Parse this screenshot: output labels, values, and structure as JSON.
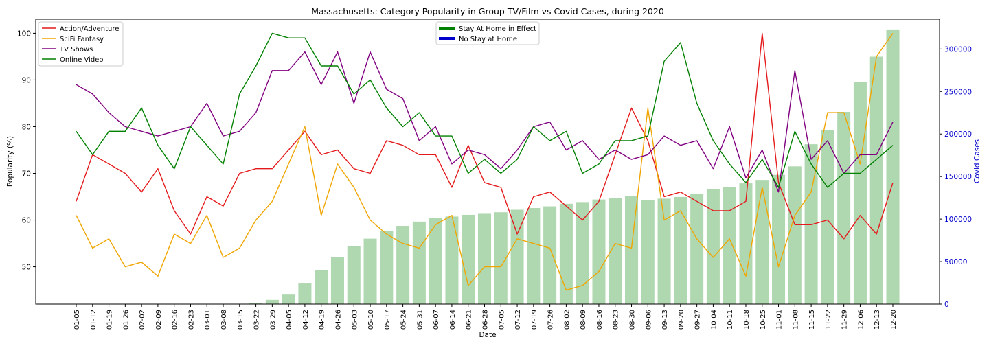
{
  "chart_data": {
    "type": "line",
    "title": "Massachusetts: Category Popularity in Group TV/Film vs Covid Cases, during 2020",
    "xlabel": "Date",
    "ylabel": "Popularity (%)",
    "y2label": "Covid Cases",
    "ylim": [
      42,
      103
    ],
    "y2lim": [
      0,
      335000
    ],
    "yticks": [
      50,
      60,
      70,
      80,
      90,
      100
    ],
    "y2ticks": [
      0,
      50000,
      100000,
      150000,
      200000,
      250000,
      300000
    ],
    "grid": false,
    "legend_placement": "top-left",
    "legend2_placement": "top-center",
    "categories": [
      "01-05",
      "01-12",
      "01-19",
      "01-26",
      "02-02",
      "02-09",
      "02-16",
      "02-23",
      "03-01",
      "03-08",
      "03-15",
      "03-22",
      "03-29",
      "04-05",
      "04-12",
      "04-19",
      "04-26",
      "05-03",
      "05-10",
      "05-17",
      "05-24",
      "05-31",
      "06-07",
      "06-14",
      "06-21",
      "06-28",
      "07-05",
      "07-12",
      "07-19",
      "07-26",
      "08-02",
      "08-09",
      "08-16",
      "08-23",
      "08-30",
      "09-06",
      "09-13",
      "09-20",
      "09-27",
      "10-04",
      "10-11",
      "10-18",
      "10-25",
      "11-01",
      "11-08",
      "11-15",
      "11-22",
      "11-29",
      "12-06",
      "12-13",
      "12-20"
    ],
    "series": [
      {
        "name": "Action/Adventure",
        "color": "#e41a1c",
        "values": [
          64,
          74,
          72,
          70,
          66,
          71,
          62,
          57,
          65,
          63,
          70,
          71,
          71,
          75,
          79,
          74,
          75,
          71,
          70,
          77,
          76,
          74,
          74,
          67,
          76,
          68,
          67,
          57,
          65,
          66,
          63,
          60,
          64,
          74,
          84,
          77,
          65,
          66,
          64,
          62,
          62,
          64,
          100,
          68,
          59,
          59,
          60,
          56,
          61,
          57,
          68
        ]
      },
      {
        "name": "SciFi Fantasy",
        "color": "#f0a500",
        "values": [
          61,
          54,
          56,
          50,
          51,
          48,
          57,
          55,
          61,
          52,
          54,
          60,
          64,
          72,
          80,
          61,
          72,
          67,
          60,
          57,
          55,
          54,
          59,
          61,
          46,
          50,
          50,
          56,
          55,
          54,
          45,
          46,
          49,
          55,
          54,
          84,
          60,
          62,
          56,
          52,
          56,
          48,
          67,
          50,
          61,
          66,
          83,
          83,
          72,
          95,
          100
        ]
      },
      {
        "name": "TV Shows",
        "color": "#800080",
        "values": [
          89,
          87,
          83,
          80,
          79,
          78,
          79,
          80,
          85,
          78,
          79,
          83,
          92,
          92,
          96,
          89,
          96,
          85,
          96,
          88,
          86,
          77,
          80,
          72,
          75,
          74,
          71,
          75,
          80,
          81,
          75,
          77,
          73,
          75,
          73,
          74,
          78,
          76,
          77,
          71,
          80,
          69,
          75,
          66,
          92,
          73,
          77,
          70,
          74,
          74,
          81
        ]
      },
      {
        "name": "Online Video",
        "color": "#008000",
        "values": [
          79,
          74,
          79,
          79,
          84,
          76,
          71,
          80,
          76,
          72,
          87,
          93,
          100,
          99,
          99,
          93,
          93,
          87,
          90,
          84,
          80,
          83,
          78,
          78,
          70,
          73,
          70,
          73,
          80,
          77,
          79,
          70,
          72,
          77,
          77,
          78,
          94,
          98,
          85,
          77,
          72,
          68,
          73,
          67,
          79,
          72,
          67,
          70,
          70,
          73,
          76
        ]
      }
    ],
    "bars": {
      "name": "Covid Cases",
      "color": "#b0d8b0",
      "values": [
        0,
        0,
        0,
        0,
        0,
        0,
        0,
        0,
        0,
        0,
        0,
        800,
        5000,
        12000,
        25000,
        40000,
        55000,
        68000,
        77000,
        86000,
        92000,
        97000,
        101000,
        103000,
        105000,
        107000,
        108000,
        111000,
        113000,
        115000,
        118000,
        120000,
        123000,
        125000,
        127000,
        122000,
        124000,
        126000,
        130000,
        135000,
        138000,
        142000,
        146000,
        152000,
        162000,
        188000,
        205000,
        226000,
        261000,
        291000,
        323000
      ]
    },
    "legend2": [
      {
        "label": "Stay At Home in Effect",
        "color": "#008000"
      },
      {
        "label": "No Stay at Home",
        "color": "#0000cc"
      }
    ]
  }
}
